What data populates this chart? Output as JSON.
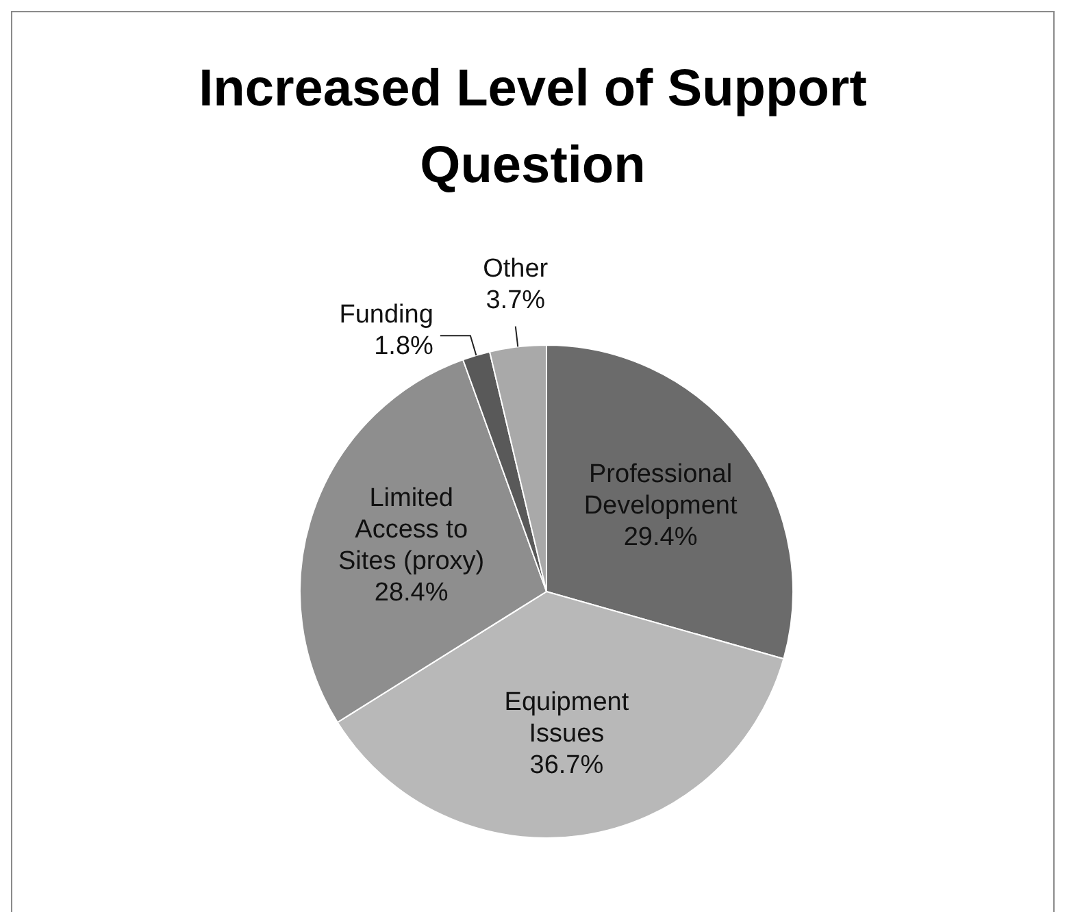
{
  "chart_data": {
    "type": "pie",
    "title": "Increased Level of Support Question",
    "categories": [
      "Professional Development",
      "Equipment Issues",
      "Limited Access to Sites (proxy)",
      "Funding",
      "Other"
    ],
    "values": [
      29.4,
      36.7,
      28.4,
      1.8,
      3.7
    ],
    "colors": [
      "#6b6b6b",
      "#b8b8b8",
      "#8e8e8e",
      "#595959",
      "#a9a9a9"
    ],
    "value_labels": [
      "29.4%",
      "36.7%",
      "28.4%",
      "1.8%",
      "3.7%"
    ]
  }
}
